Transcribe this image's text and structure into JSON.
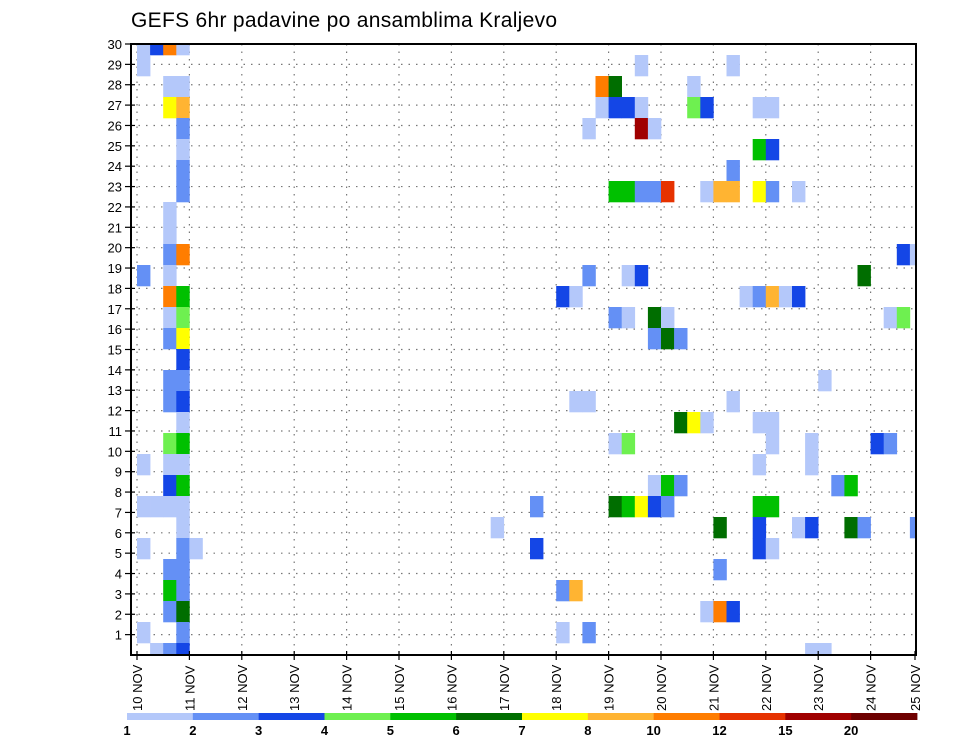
{
  "chart_data": {
    "type": "heatmap",
    "title": "GEFS 6hr padavine po ansamblima Kraljevo",
    "xlabel": "",
    "ylabel": "",
    "x_unit": "6-hour step from 10 NOV 00Z",
    "x_tick_labels": [
      "10 NOV",
      "11 NOV",
      "12 NOV",
      "13 NOV",
      "14 NOV",
      "15 NOV",
      "16 NOV",
      "17 NOV",
      "18 NOV",
      "19 NOV",
      "20 NOV",
      "21 NOV",
      "22 NOV",
      "23 NOV",
      "24 NOV",
      "25 NOV"
    ],
    "y_tick_labels": [
      "1",
      "2",
      "3",
      "4",
      "5",
      "6",
      "7",
      "8",
      "9",
      "10",
      "11",
      "12",
      "13",
      "14",
      "15",
      "16",
      "17",
      "18",
      "19",
      "20",
      "21",
      "22",
      "23",
      "24",
      "25",
      "26",
      "27",
      "28",
      "29",
      "30"
    ],
    "ylim": [
      0,
      30
    ],
    "grid": true,
    "colorbar": {
      "placement": "bottom",
      "labels": [
        "1",
        "2",
        "3",
        "4",
        "5",
        "6",
        "7",
        "8",
        "10",
        "12",
        "15",
        "20"
      ],
      "colors": [
        "#b4c8fa",
        "#6490f5",
        "#1446e6",
        "#6ef050",
        "#00c000",
        "#006e00",
        "#ffff00",
        "#ffb432",
        "#ff7d00",
        "#e63200",
        "#a00000",
        "#6e0000"
      ]
    },
    "cells_format": "[member_row, step_6h, color_bin]",
    "cells": [
      [
        29,
        0,
        0
      ],
      [
        29,
        1,
        2
      ],
      [
        29,
        2,
        8
      ],
      [
        29,
        3,
        0
      ],
      [
        28,
        0,
        0
      ],
      [
        28,
        38,
        0
      ],
      [
        28,
        45,
        0
      ],
      [
        27,
        2,
        0
      ],
      [
        27,
        3,
        0
      ],
      [
        27,
        35,
        8
      ],
      [
        27,
        36,
        5
      ],
      [
        27,
        42,
        0
      ],
      [
        26,
        2,
        6
      ],
      [
        26,
        3,
        7
      ],
      [
        26,
        35,
        0
      ],
      [
        26,
        36,
        2
      ],
      [
        26,
        37,
        2
      ],
      [
        26,
        38,
        0
      ],
      [
        26,
        42,
        3
      ],
      [
        26,
        43,
        2
      ],
      [
        26,
        47,
        0
      ],
      [
        26,
        48,
        0
      ],
      [
        25,
        3,
        1
      ],
      [
        25,
        34,
        0
      ],
      [
        25,
        38,
        10
      ],
      [
        25,
        39,
        0
      ],
      [
        24,
        3,
        0
      ],
      [
        24,
        47,
        4
      ],
      [
        24,
        48,
        2
      ],
      [
        23,
        3,
        1
      ],
      [
        23,
        45,
        1
      ],
      [
        22,
        3,
        1
      ],
      [
        22,
        36,
        4
      ],
      [
        22,
        37,
        4
      ],
      [
        22,
        38,
        1
      ],
      [
        22,
        39,
        1
      ],
      [
        22,
        40,
        9
      ],
      [
        22,
        43,
        0
      ],
      [
        22,
        44,
        7
      ],
      [
        22,
        45,
        7
      ],
      [
        22,
        47,
        6
      ],
      [
        22,
        48,
        1
      ],
      [
        22,
        50,
        0
      ],
      [
        21,
        2,
        0
      ],
      [
        20,
        2,
        0
      ],
      [
        19,
        2,
        1
      ],
      [
        19,
        3,
        8
      ],
      [
        19,
        58,
        2
      ],
      [
        19,
        59,
        0
      ],
      [
        18,
        0,
        1
      ],
      [
        18,
        2,
        0
      ],
      [
        18,
        34,
        1
      ],
      [
        18,
        37,
        0
      ],
      [
        18,
        38,
        2
      ],
      [
        18,
        55,
        5
      ],
      [
        17,
        2,
        8
      ],
      [
        17,
        3,
        4
      ],
      [
        17,
        32,
        2
      ],
      [
        17,
        33,
        0
      ],
      [
        17,
        46,
        0
      ],
      [
        17,
        47,
        1
      ],
      [
        17,
        48,
        7
      ],
      [
        17,
        49,
        0
      ],
      [
        17,
        50,
        2
      ],
      [
        16,
        2,
        0
      ],
      [
        16,
        3,
        3
      ],
      [
        16,
        36,
        1
      ],
      [
        16,
        37,
        0
      ],
      [
        16,
        39,
        5
      ],
      [
        16,
        40,
        0
      ],
      [
        16,
        57,
        0
      ],
      [
        16,
        58,
        3
      ],
      [
        15,
        2,
        1
      ],
      [
        15,
        3,
        6
      ],
      [
        15,
        39,
        1
      ],
      [
        15,
        40,
        5
      ],
      [
        15,
        41,
        1
      ],
      [
        14,
        3,
        2
      ],
      [
        13,
        2,
        1
      ],
      [
        13,
        3,
        1
      ],
      [
        13,
        52,
        0
      ],
      [
        12,
        2,
        1
      ],
      [
        12,
        3,
        2
      ],
      [
        12,
        33,
        0
      ],
      [
        12,
        34,
        0
      ],
      [
        12,
        45,
        0
      ],
      [
        11,
        3,
        0
      ],
      [
        11,
        41,
        5
      ],
      [
        11,
        42,
        6
      ],
      [
        11,
        43,
        0
      ],
      [
        11,
        47,
        0
      ],
      [
        11,
        48,
        0
      ],
      [
        10,
        2,
        3
      ],
      [
        10,
        3,
        4
      ],
      [
        10,
        36,
        0
      ],
      [
        10,
        37,
        3
      ],
      [
        10,
        48,
        0
      ],
      [
        10,
        51,
        0
      ],
      [
        10,
        56,
        2
      ],
      [
        10,
        57,
        1
      ],
      [
        9,
        0,
        0
      ],
      [
        9,
        2,
        0
      ],
      [
        9,
        3,
        0
      ],
      [
        9,
        47,
        0
      ],
      [
        9,
        51,
        0
      ],
      [
        8,
        2,
        2
      ],
      [
        8,
        3,
        4
      ],
      [
        8,
        39,
        0
      ],
      [
        8,
        40,
        4
      ],
      [
        8,
        41,
        1
      ],
      [
        8,
        53,
        1
      ],
      [
        8,
        54,
        4
      ],
      [
        7,
        0,
        0
      ],
      [
        7,
        1,
        0
      ],
      [
        7,
        2,
        0
      ],
      [
        7,
        3,
        0
      ],
      [
        7,
        30,
        1
      ],
      [
        7,
        36,
        5
      ],
      [
        7,
        37,
        4
      ],
      [
        7,
        38,
        6
      ],
      [
        7,
        39,
        2
      ],
      [
        7,
        40,
        1
      ],
      [
        7,
        47,
        4
      ],
      [
        7,
        48,
        4
      ],
      [
        6,
        3,
        0
      ],
      [
        6,
        27,
        0
      ],
      [
        6,
        44,
        5
      ],
      [
        6,
        47,
        2
      ],
      [
        6,
        50,
        0
      ],
      [
        6,
        51,
        2
      ],
      [
        6,
        54,
        5
      ],
      [
        6,
        55,
        1
      ],
      [
        6,
        59,
        1
      ],
      [
        5,
        0,
        0
      ],
      [
        5,
        3,
        1
      ],
      [
        5,
        4,
        0
      ],
      [
        5,
        30,
        2
      ],
      [
        5,
        47,
        2
      ],
      [
        5,
        48,
        0
      ],
      [
        4,
        2,
        1
      ],
      [
        4,
        3,
        1
      ],
      [
        4,
        44,
        1
      ],
      [
        3,
        2,
        4
      ],
      [
        3,
        3,
        1
      ],
      [
        3,
        32,
        1
      ],
      [
        3,
        33,
        7
      ],
      [
        2,
        2,
        1
      ],
      [
        2,
        3,
        5
      ],
      [
        2,
        43,
        0
      ],
      [
        2,
        44,
        8
      ],
      [
        2,
        45,
        2
      ],
      [
        1,
        0,
        0
      ],
      [
        1,
        3,
        1
      ],
      [
        1,
        32,
        0
      ],
      [
        1,
        34,
        1
      ],
      [
        0,
        1,
        0
      ],
      [
        0,
        2,
        1
      ],
      [
        0,
        3,
        2
      ],
      [
        0,
        51,
        0
      ],
      [
        0,
        52,
        0
      ]
    ]
  }
}
